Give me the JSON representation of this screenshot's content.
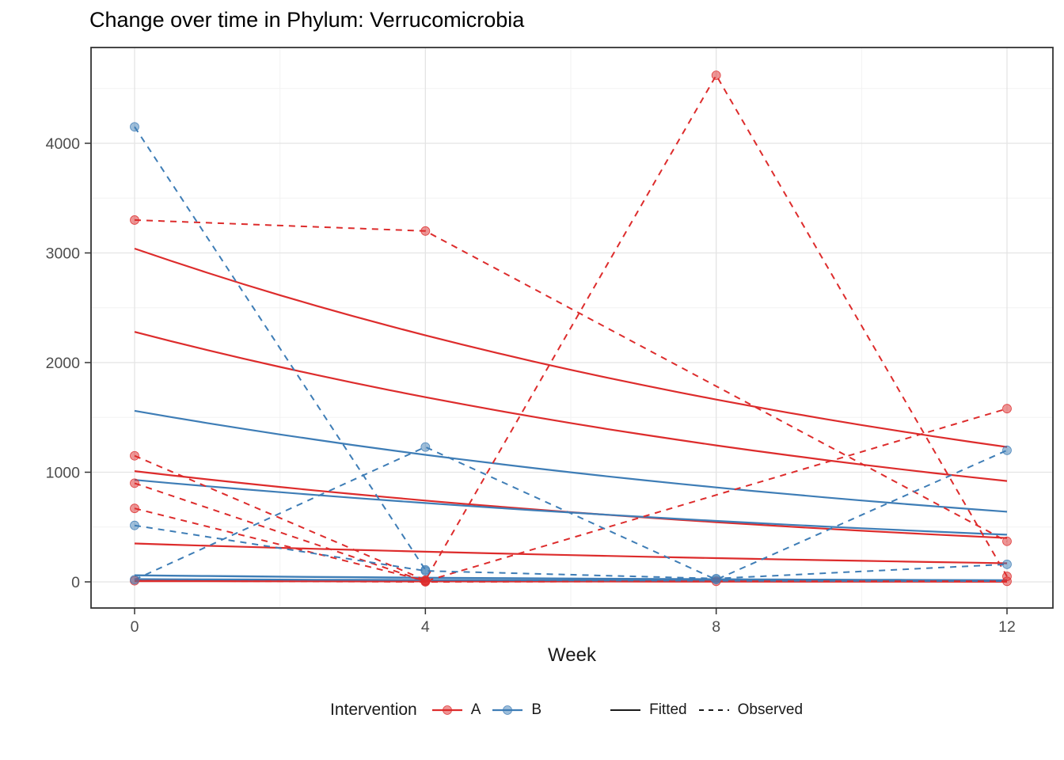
{
  "title": "Change over time in Phylum: Verrucomicrobia",
  "chart_data": {
    "type": "line",
    "title": "Change over time in Phylum: Verrucomicrobia",
    "xlabel": "Week",
    "ylabel": "",
    "x_ticks": [
      0,
      4,
      8,
      12
    ],
    "y_ticks": [
      0,
      1000,
      2000,
      3000,
      4000
    ],
    "y_minor_ticks": [
      500,
      1500,
      2500,
      3500,
      4500
    ],
    "x_minor_ticks": [
      2,
      6,
      10
    ],
    "xlim": [
      -0.6,
      12.65
    ],
    "ylim": [
      -240,
      4875
    ],
    "grid": {
      "major": true,
      "minor": true
    },
    "legend_position": "bottom",
    "colors": {
      "A": "#DD2C2C",
      "B": "#3E7DB6",
      "key_black": "#1a1a1a",
      "axis_text": "#4D4D4D",
      "axis_line": "#333333",
      "grid_major": "#E4E4E4",
      "grid_minor": "#F2F2F2"
    },
    "series": [
      {
        "group": "A",
        "kind": "fitted",
        "x": [
          0,
          12
        ],
        "y": [
          3040,
          1230
        ],
        "width": 2.2
      },
      {
        "group": "A",
        "kind": "fitted",
        "x": [
          0,
          12
        ],
        "y": [
          2280,
          920
        ],
        "width": 2.2
      },
      {
        "group": "A",
        "kind": "fitted",
        "x": [
          0,
          12
        ],
        "y": [
          1010,
          400
        ],
        "width": 2.2
      },
      {
        "group": "A",
        "kind": "fitted",
        "x": [
          0,
          12
        ],
        "y": [
          350,
          170
        ],
        "width": 2.2
      },
      {
        "group": "A",
        "kind": "fitted",
        "x": [
          0,
          12
        ],
        "y": [
          15,
          5
        ],
        "width": 3.2
      },
      {
        "group": "A",
        "kind": "fitted",
        "x": [
          0,
          12
        ],
        "y": [
          6,
          2
        ],
        "width": 2.2
      },
      {
        "group": "B",
        "kind": "fitted",
        "x": [
          0,
          12
        ],
        "y": [
          1560,
          640
        ],
        "width": 2.2
      },
      {
        "group": "B",
        "kind": "fitted",
        "x": [
          0,
          12
        ],
        "y": [
          930,
          430
        ],
        "width": 2.2
      },
      {
        "group": "B",
        "kind": "fitted",
        "x": [
          0,
          12
        ],
        "y": [
          60,
          15
        ],
        "width": 2.4
      },
      {
        "group": "B",
        "kind": "fitted",
        "x": [
          0,
          12
        ],
        "y": [
          25,
          8
        ],
        "width": 2.2
      },
      {
        "group": "A",
        "kind": "observed",
        "x": [
          0,
          4,
          12
        ],
        "y": [
          3300,
          3200,
          370
        ]
      },
      {
        "group": "A",
        "kind": "observed",
        "x": [
          0,
          4,
          8,
          12
        ],
        "y": [
          1150,
          15,
          4620,
          50
        ]
      },
      {
        "group": "A",
        "kind": "observed",
        "x": [
          0,
          4,
          12
        ],
        "y": [
          900,
          5,
          1580
        ]
      },
      {
        "group": "A",
        "kind": "observed",
        "x": [
          0,
          4
        ],
        "y": [
          670,
          10
        ]
      },
      {
        "group": "A",
        "kind": "observed",
        "x": [
          0,
          4,
          8,
          12
        ],
        "y": [
          10,
          0,
          5,
          5
        ]
      },
      {
        "group": "B",
        "kind": "observed",
        "x": [
          0,
          4
        ],
        "y": [
          4150,
          110
        ]
      },
      {
        "group": "B",
        "kind": "observed",
        "x": [
          0,
          4,
          8,
          12
        ],
        "y": [
          20,
          1230,
          20,
          1200
        ]
      },
      {
        "group": "B",
        "kind": "observed",
        "x": [
          0,
          4,
          8,
          12
        ],
        "y": [
          515,
          100,
          30,
          160
        ]
      }
    ]
  },
  "legend": {
    "title": "Intervention",
    "groups": [
      {
        "label": "A"
      },
      {
        "label": "B"
      }
    ],
    "linetypes": [
      {
        "label": "Fitted"
      },
      {
        "label": "Observed"
      }
    ]
  },
  "axis": {
    "x_tick_labels": [
      "0",
      "4",
      "8",
      "12"
    ],
    "y_tick_labels": [
      "0",
      "1000",
      "2000",
      "3000",
      "4000"
    ],
    "x_label": "Week"
  }
}
